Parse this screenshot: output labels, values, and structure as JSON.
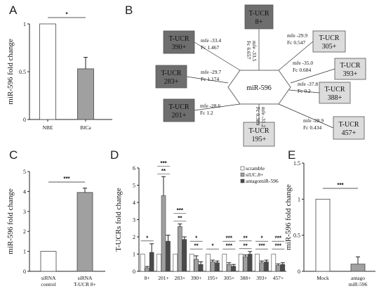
{
  "panels": {
    "A": "A",
    "B": "B",
    "C": "C",
    "D": "D",
    "E": "E"
  },
  "colors": {
    "white": "#ffffff",
    "grey": "#a0a0a0",
    "dark": "#4a4a4a",
    "box_dark": "#6e6e6e",
    "box_light": "#dcdcdc"
  },
  "chart_data": [
    {
      "panel": "A",
      "type": "bar",
      "categories": [
        "NBE",
        "BlCa"
      ],
      "values": [
        1.0,
        0.53
      ],
      "errors": [
        0,
        0.12
      ],
      "ylabel": "miR-596 fold change",
      "ylim": [
        0,
        1
      ],
      "yticks": [
        "0",
        "0.5",
        "1"
      ],
      "significance": "*"
    },
    {
      "panel": "C",
      "type": "bar",
      "categories": [
        [
          "siRNA",
          "control"
        ],
        [
          "siRNA",
          "T-UCR 8+"
        ]
      ],
      "values": [
        1.0,
        3.95
      ],
      "errors": [
        0,
        0.22
      ],
      "ylabel": "miR-596 fold change",
      "ylim": [
        0,
        5
      ],
      "yticks": [
        "0",
        "1",
        "2",
        "3",
        "4",
        "5"
      ],
      "significance": "***"
    },
    {
      "panel": "D",
      "type": "bar",
      "categories": [
        "8+",
        "201+",
        "283+",
        "390+",
        "195+",
        "305+",
        "388+",
        "393+",
        "457+"
      ],
      "series": [
        {
          "name": "scramble",
          "values": [
            1.0,
            1.0,
            1.0,
            1.0,
            1.0,
            1.0,
            1.0,
            1.0,
            1.0
          ],
          "errors": [
            0,
            0,
            0,
            0,
            0,
            0,
            0,
            0,
            0
          ]
        },
        {
          "name": "siUC.8+",
          "values": [
            0.2,
            4.4,
            2.6,
            0.7,
            0.55,
            0.4,
            0.85,
            0.5,
            0.35
          ],
          "errors": [
            0.08,
            1.1,
            0.15,
            0.2,
            0.1,
            0.1,
            0.1,
            0.1,
            0.08
          ]
        },
        {
          "name": "antagomiR-596",
          "values": [
            1.1,
            1.75,
            1.85,
            0.4,
            0.5,
            0.3,
            1.0,
            0.55,
            0.4
          ],
          "errors": [
            0.5,
            0.35,
            0.15,
            0.15,
            0.1,
            0.1,
            0.15,
            0.1,
            0.1
          ]
        }
      ],
      "ylabel": "T-UCRs fold change",
      "ylim": [
        0,
        6
      ],
      "yticks": [
        "0",
        "1",
        "2",
        "3",
        "4",
        "5",
        "6"
      ],
      "significance": [
        {
          "cat": 0,
          "upper": "",
          "lower": "*"
        },
        {
          "cat": 1,
          "upper": "***",
          "lower": "**"
        },
        {
          "cat": 2,
          "upper": "***",
          "lower": "**"
        },
        {
          "cat": 3,
          "upper": "*",
          "lower": "**"
        },
        {
          "cat": 4,
          "upper": "",
          "lower": "*"
        },
        {
          "cat": 5,
          "upper": "***",
          "lower": "***"
        },
        {
          "cat": 6,
          "upper": "**",
          "lower": "**"
        },
        {
          "cat": 7,
          "upper": "*",
          "lower": "***"
        },
        {
          "cat": 8,
          "upper": "***",
          "lower": "***"
        }
      ],
      "legend": [
        "scramble",
        "siUC.8+",
        "antagomiR-596"
      ]
    },
    {
      "panel": "E",
      "type": "bar",
      "categories": [
        [
          "Mock"
        ],
        [
          "antago",
          "miR-596"
        ]
      ],
      "values": [
        1.0,
        0.1
      ],
      "errors": [
        0,
        0.1
      ],
      "ylabel": "miR-596 fold change",
      "ylim": [
        0,
        1.5
      ],
      "yticks": [
        "0",
        "0.5",
        "1",
        "1.5"
      ],
      "significance": "***"
    }
  ],
  "network": {
    "center": "miR-596",
    "nodes": [
      {
        "id": "8+",
        "line1": "T-UCR",
        "line2": "8+",
        "shade": "dark",
        "mfe": "mfe -33.5",
        "fc": "Fc 6.657"
      },
      {
        "id": "390+",
        "line1": "T-UCR",
        "line2": "390+",
        "shade": "dark",
        "mfe": "mfe -33.4",
        "fc": "Fc 1.467"
      },
      {
        "id": "283+",
        "line1": "T-UCR",
        "line2": "283+",
        "shade": "dark",
        "mfe": "mfe -29.7",
        "fc": "Fc 1.174"
      },
      {
        "id": "201+",
        "line1": "T-UCR",
        "line2": "201+",
        "shade": "dark",
        "mfe": "mfe -28.6",
        "fc": "Fc 1.2"
      },
      {
        "id": "195+",
        "line1": "T-UCR",
        "line2": "195+",
        "shade": "light",
        "mfe": "mfe -31.2",
        "fc": "Fc 0.389"
      },
      {
        "id": "305+",
        "line1": "T-UCR",
        "line2": "305+",
        "shade": "light",
        "mfe": "mfe -29.9",
        "fc": "Fc 0.547"
      },
      {
        "id": "393+",
        "line1": "T-UCR",
        "line2": "393+",
        "shade": "light",
        "mfe": "mfe -35.0",
        "fc": "Fc 0.684"
      },
      {
        "id": "388+",
        "line1": "T-UCR",
        "line2": "388+",
        "shade": "light",
        "mfe": "mfe -37.8",
        "fc": "Fc 0.2"
      },
      {
        "id": "457+",
        "line1": "T-UCR",
        "line2": "457+",
        "shade": "light",
        "mfe": "mfe -28.9",
        "fc": "Fc 0.434"
      }
    ]
  }
}
